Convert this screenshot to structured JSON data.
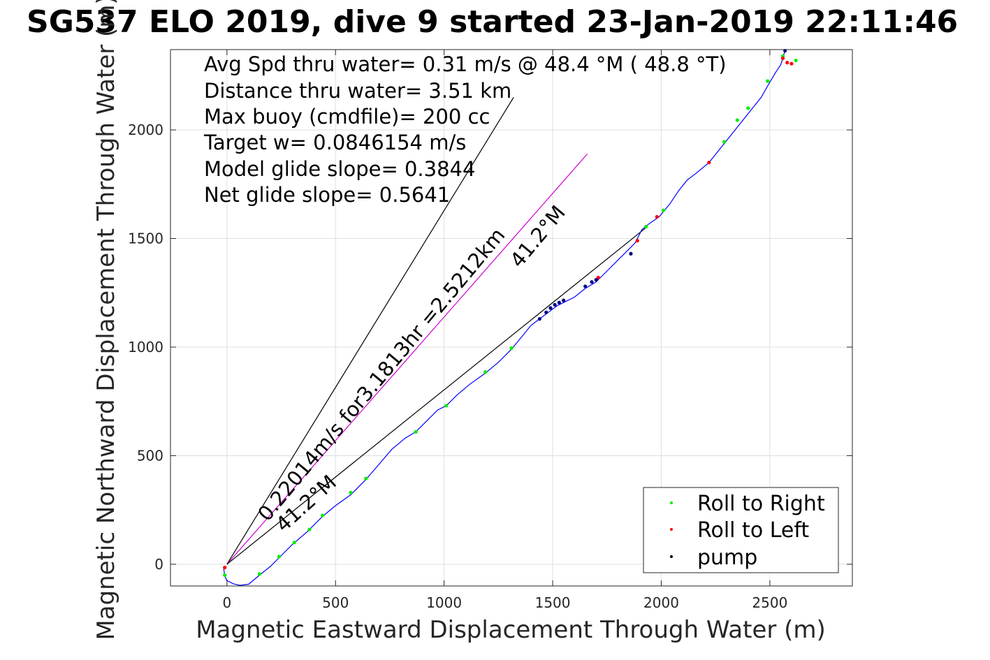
{
  "chart_data": {
    "type": "line",
    "title": "SG537 ELO 2019, dive 9 started 23-Jan-2019 22:11:46",
    "xlabel": "Magnetic Eastward Displacement Through Water (m)",
    "ylabel": "Magnetic Northward Displacement Through Water (m)",
    "xlim": [
      -260,
      2880
    ],
    "ylim": [
      -100,
      2370
    ],
    "xticks": [
      0,
      500,
      1000,
      1500,
      2000,
      2500
    ],
    "yticks": [
      0,
      500,
      1000,
      1500,
      2000
    ],
    "grid": true,
    "legend_position": "bottom-right",
    "colors": {
      "track": "#0000ff",
      "roll_right": "#00ee00",
      "roll_left": "#ff0000",
      "pump": "#000080",
      "magenta": "#cc00cc",
      "black": "#000000"
    },
    "info_lines": [
      "Avg Spd thru water=  0.31 m/s @  48.4 °M ( 48.8 °T)",
      "Distance thru water=  3.51 km",
      "Max buoy (cmdfile)= 200 cc",
      "Target w= 0.0846154 m/s",
      "Model glide slope= 0.3844",
      "Net glide slope= 0.5641"
    ],
    "annotations": {
      "magenta_line_label": "0.22014m/s for3.1813hr =2.5212km",
      "heading_upper": "41.2°M",
      "heading_lower": "41.2°M"
    },
    "reference_lines": [
      {
        "name": "black-steep",
        "color": "#000000",
        "x": [
          0,
          1320
        ],
        "y": [
          0,
          2150
        ]
      },
      {
        "name": "magenta-current",
        "color": "#cc00cc",
        "x": [
          0,
          1660
        ],
        "y": [
          0,
          1890
        ]
      },
      {
        "name": "black-shallow",
        "color": "#000000",
        "x": [
          0,
          1930
        ],
        "y": [
          0,
          1550
        ]
      }
    ],
    "track": {
      "x": [
        -15,
        -10,
        0,
        30,
        60,
        100,
        150,
        200,
        250,
        300,
        370,
        440,
        500,
        570,
        640,
        700,
        760,
        820,
        870,
        920,
        970,
        1010,
        1060,
        1120,
        1190,
        1250,
        1310,
        1360,
        1400,
        1440,
        1480,
        1520,
        1560,
        1600,
        1650,
        1700,
        1720,
        1760,
        1820,
        1880,
        1910,
        1940,
        1990,
        2040,
        2080,
        2120,
        2160,
        2220,
        2260,
        2300,
        2340,
        2380,
        2420,
        2460,
        2500,
        2530,
        2550,
        2560,
        2565,
        2570,
        2575
      ],
      "y": [
        -20,
        -55,
        -75,
        -90,
        -97,
        -92,
        -50,
        -10,
        40,
        90,
        150,
        220,
        270,
        320,
        390,
        460,
        530,
        580,
        610,
        660,
        710,
        730,
        780,
        830,
        880,
        930,
        990,
        1050,
        1100,
        1130,
        1160,
        1190,
        1210,
        1230,
        1270,
        1300,
        1320,
        1360,
        1420,
        1480,
        1540,
        1565,
        1600,
        1660,
        1720,
        1770,
        1800,
        1850,
        1900,
        1950,
        2000,
        2050,
        2100,
        2150,
        2220,
        2270,
        2300,
        2330,
        2350,
        2360,
        2370
      ]
    },
    "series": [
      {
        "name": "Roll to Right",
        "x": [
          -10,
          150,
          240,
          310,
          380,
          440,
          570,
          640,
          870,
          1010,
          1190,
          1310,
          1930,
          2010,
          2290,
          2350,
          2400,
          2490,
          2560,
          2620
        ],
        "y": [
          -50,
          -45,
          35,
          100,
          160,
          225,
          330,
          395,
          610,
          730,
          885,
          995,
          1555,
          1630,
          1945,
          2045,
          2100,
          2225,
          2340,
          2320
        ]
      },
      {
        "name": "Roll to Left",
        "x": [
          -10,
          1710,
          1890,
          1980,
          2220,
          2560,
          2580,
          2600
        ],
        "y": [
          -15,
          1320,
          1490,
          1600,
          1850,
          2330,
          2310,
          2305
        ]
      },
      {
        "name": "pump",
        "x": [
          1440,
          1470,
          1490,
          1510,
          1530,
          1550,
          1650,
          1680,
          1700,
          1860,
          2570
        ],
        "y": [
          1130,
          1160,
          1180,
          1195,
          1205,
          1215,
          1280,
          1300,
          1310,
          1430,
          2365
        ]
      }
    ]
  }
}
